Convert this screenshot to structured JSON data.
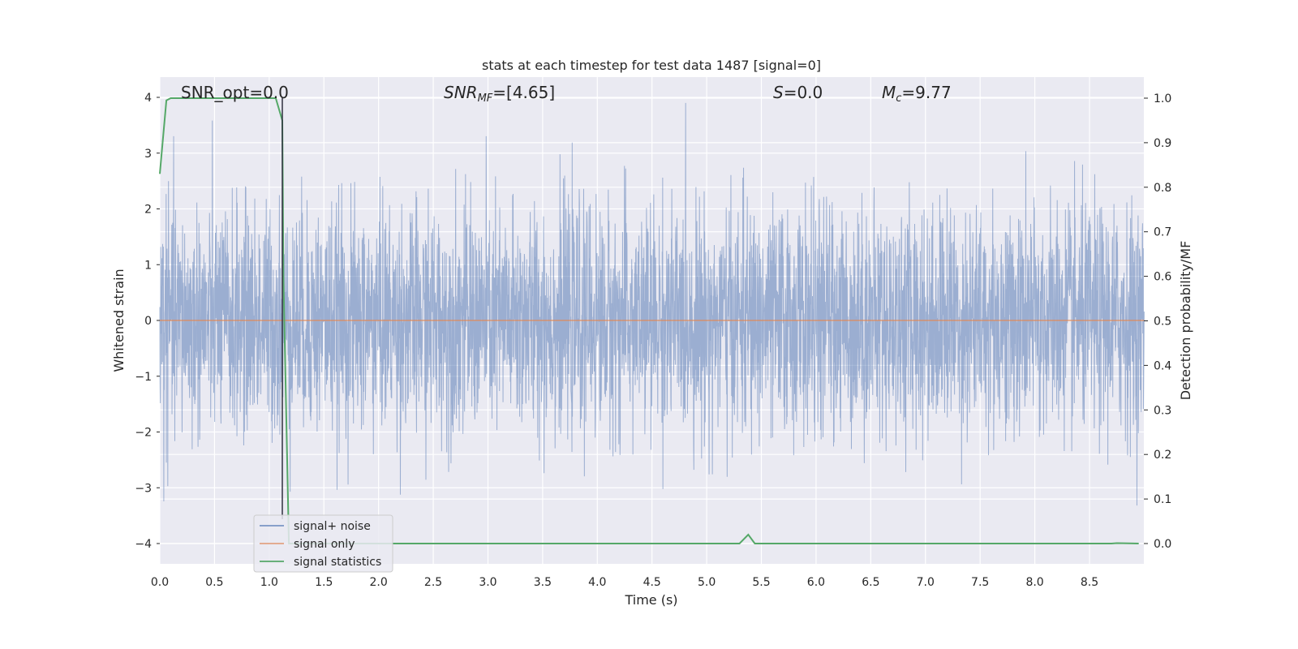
{
  "chart_data": {
    "type": "line",
    "title": "stats at each timestep for test data 1487 [signal=0]",
    "xlabel": "Time (s)",
    "ylabel": "Whitened strain",
    "y2label": "Detection probability/MF",
    "xlim": [
      0.0,
      9.0
    ],
    "ylim": [
      -4.4,
      4.4
    ],
    "y2lim": [
      -0.05,
      1.05
    ],
    "x_ticks": [
      "0.0",
      "0.5",
      "1.0",
      "1.5",
      "2.0",
      "2.5",
      "3.0",
      "3.5",
      "4.0",
      "4.5",
      "5.0",
      "5.5",
      "6.0",
      "6.5",
      "7.0",
      "7.5",
      "8.0",
      "8.5"
    ],
    "y_ticks": [
      "4",
      "3",
      "2",
      "1",
      "0",
      "−1",
      "−2",
      "−3",
      "−4"
    ],
    "y2_ticks": [
      "1.0",
      "0.9",
      "0.8",
      "0.7",
      "0.6",
      "0.5",
      "0.4",
      "0.3",
      "0.2",
      "0.1",
      "0.0"
    ],
    "grid": true,
    "annotations": {
      "snr_opt": "SNR_opt=0.0",
      "snr_mf_main": "SNR",
      "snr_mf_sub": "MF",
      "snr_mf_value": "=[4.65]",
      "s_label": "S",
      "s_value": "=0.0",
      "mc_main": "M",
      "mc_sub": "c",
      "mc_value": "=9.77"
    },
    "marker_line_x": 1.12,
    "legend": {
      "placement": "lower-left",
      "entries": [
        {
          "label": "signal+ noise",
          "color": "#4c72b0"
        },
        {
          "label": "signal only",
          "color": "#dd8452"
        },
        {
          "label": "signal statistics",
          "color": "#55a868"
        }
      ]
    },
    "series": [
      {
        "name": "signal+ noise",
        "color": "#4c72b0",
        "axis": "left",
        "kind": "noise",
        "std": 1.0,
        "approx_range": [
          -4.0,
          3.9
        ]
      },
      {
        "name": "signal only",
        "color": "#dd8452",
        "axis": "left",
        "x": [
          0.0,
          9.0
        ],
        "y": [
          0.0,
          0.0
        ]
      },
      {
        "name": "signal statistics",
        "color": "#55a868",
        "axis": "right",
        "x": [
          0.0,
          0.06,
          0.1,
          0.6,
          1.06,
          1.12,
          1.13,
          1.18,
          1.22,
          5.3,
          5.38,
          5.44,
          8.7,
          8.75,
          8.95
        ],
        "y": [
          0.83,
          0.995,
          1.0,
          1.0,
          1.0,
          0.95,
          0.6,
          0.0,
          0.0,
          0.0,
          0.02,
          0.0,
          0.0,
          0.001,
          0.0
        ]
      }
    ]
  }
}
